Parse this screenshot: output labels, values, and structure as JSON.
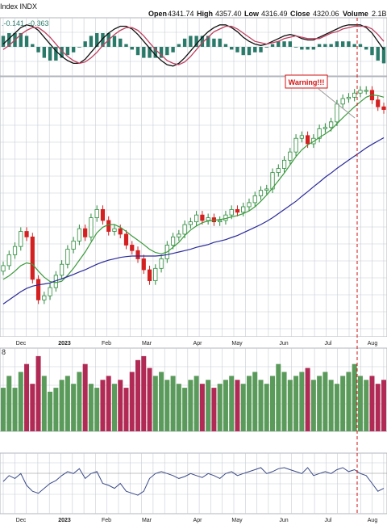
{
  "header": {
    "index_label": "Index INDX",
    "open_label": "Open",
    "open_value": "4341.74",
    "high_label": "High",
    "high_value": "4357.40",
    "low_label": "Low",
    "low_value": "4316.49",
    "close_label": "Close",
    "close_value": "4320.06",
    "volume_label": "Volume",
    "volume_value": "2.1B"
  },
  "macd_readout": ".-0.141, -0.363",
  "volume_axis_tick": "8",
  "annotation": {
    "text": "Warning!!!",
    "color": "#d01010"
  },
  "colors": {
    "up": "#2a8a3a",
    "down": "#d42020",
    "sma_short": "#3a9a3a",
    "sma_long": "#2a2a9a",
    "vol_up": "#5a9a5a",
    "vol_down": "#b02a55",
    "grid": "#c8ccd4",
    "osc": "#3a4a8a",
    "macd_hist": "#2a7a6a"
  },
  "chart_data": [
    {
      "type": "line",
      "panel": "macd",
      "series": [
        {
          "name": "",
          "values": [
            0.2,
            0.6,
            1.0,
            1.4,
            1.6,
            1.5,
            1.2,
            0.7,
            0.2,
            -0.3,
            -0.7,
            -1.0,
            -1.2,
            -1.2,
            -0.9,
            -0.4,
            0.1,
            0.6,
            1.0,
            1.3,
            1.5,
            1.5,
            1.3,
            0.9,
            0.4,
            -0.1,
            -0.6,
            -1.0,
            -1.3,
            -1.4,
            -1.2,
            -0.8,
            -0.3,
            0.2,
            0.7,
            1.1,
            1.4,
            1.6,
            1.6,
            1.4,
            1.1,
            0.7,
            0.4,
            0.2,
            0.1,
            0.2,
            0.4,
            0.6,
            0.8,
            0.9,
            0.8,
            0.6,
            0.5,
            0.5,
            0.7,
            0.9,
            1.1,
            1.3,
            1.5,
            1.6,
            1.6,
            1.6,
            1.4,
            1.0,
            0.4,
            -0.2
          ]
        },
        {
          "name": "",
          "values": [
            -0.2,
            0.1,
            0.5,
            0.9,
            1.2,
            1.4,
            1.4,
            1.1,
            0.7,
            0.2,
            -0.3,
            -0.7,
            -1.0,
            -1.2,
            -1.1,
            -0.8,
            -0.4,
            0.1,
            0.5,
            0.9,
            1.2,
            1.4,
            1.4,
            1.2,
            0.8,
            0.3,
            -0.2,
            -0.6,
            -1.0,
            -1.2,
            -1.3,
            -1.1,
            -0.7,
            -0.2,
            0.3,
            0.7,
            1.1,
            1.3,
            1.5,
            1.5,
            1.3,
            1.0,
            0.7,
            0.4,
            0.3,
            0.2,
            0.3,
            0.4,
            0.6,
            0.7,
            0.8,
            0.7,
            0.6,
            0.6,
            0.6,
            0.8,
            1.0,
            1.1,
            1.3,
            1.4,
            1.5,
            1.5,
            1.5,
            1.3,
            0.9,
            0.4
          ]
        }
      ],
      "ylim": [
        -2,
        2
      ]
    },
    {
      "type": "candlestick",
      "panel": "price",
      "x_labels": [
        "Dec",
        "2023",
        "Feb",
        "Mar",
        "Apr",
        "May",
        "Jun",
        "Jul",
        "Aug"
      ],
      "close": [
        3945,
        3985,
        4015,
        4070,
        4050,
        3895,
        3820,
        3835,
        3865,
        3910,
        3950,
        4005,
        4035,
        4080,
        4050,
        4120,
        4150,
        4110,
        4070,
        4080,
        4060,
        4020,
        4000,
        3970,
        3930,
        3890,
        3935,
        3970,
        4020,
        4050,
        4060,
        4095,
        4105,
        4130,
        4110,
        4120,
        4105,
        4110,
        4130,
        4150,
        4140,
        4160,
        4175,
        4200,
        4220,
        4225,
        4285,
        4300,
        4330,
        4360,
        4410,
        4420,
        4390,
        4410,
        4445,
        4450,
        4470,
        4535,
        4555,
        4560,
        4575,
        4585,
        4585,
        4550,
        4525,
        4515
      ],
      "sma_short_values": [
        3895,
        3908,
        3925,
        3945,
        3955,
        3950,
        3925,
        3903,
        3887,
        3883,
        3888,
        3910,
        3935,
        3965,
        3995,
        4030,
        4065,
        4085,
        4095,
        4095,
        4085,
        4070,
        4053,
        4038,
        4022,
        4005,
        3993,
        3988,
        3995,
        4012,
        4030,
        4055,
        4075,
        4090,
        4102,
        4108,
        4111,
        4113,
        4117,
        4123,
        4128,
        4135,
        4145,
        4160,
        4180,
        4203,
        4228,
        4255,
        4283,
        4313,
        4343,
        4368,
        4386,
        4398,
        4413,
        4426,
        4441,
        4463,
        4485,
        4505,
        4525,
        4543,
        4560,
        4568,
        4566,
        4560
      ],
      "sma_long_values": [
        3805,
        3820,
        3835,
        3850,
        3862,
        3870,
        3875,
        3878,
        3882,
        3890,
        3897,
        3905,
        3913,
        3922,
        3930,
        3940,
        3950,
        3958,
        3965,
        3970,
        3975,
        3978,
        3980,
        3980,
        3980,
        3980,
        3980,
        3982,
        3985,
        3990,
        3995,
        4000,
        4005,
        4012,
        4017,
        4022,
        4030,
        4035,
        4040,
        4048,
        4055,
        4065,
        4075,
        4085,
        4095,
        4107,
        4120,
        4135,
        4150,
        4165,
        4180,
        4198,
        4215,
        4233,
        4250,
        4268,
        4283,
        4300,
        4315,
        4330,
        4345,
        4360,
        4375,
        4388,
        4400,
        4412
      ],
      "ylim": [
        3700,
        4620
      ]
    },
    {
      "type": "bar",
      "panel": "volume",
      "values": [
        0.55,
        0.7,
        0.55,
        0.75,
        0.85,
        0.6,
        0.95,
        0.7,
        0.5,
        0.55,
        0.65,
        0.7,
        0.6,
        0.75,
        0.85,
        0.6,
        0.55,
        0.65,
        0.7,
        0.6,
        0.65,
        0.55,
        0.75,
        0.9,
        0.95,
        0.8,
        0.7,
        0.75,
        0.65,
        0.7,
        0.6,
        0.55,
        0.65,
        0.7,
        0.6,
        0.65,
        0.55,
        0.6,
        0.65,
        0.7,
        0.65,
        0.6,
        0.7,
        0.75,
        0.65,
        0.6,
        0.7,
        0.85,
        0.75,
        0.65,
        0.7,
        0.75,
        0.8,
        0.65,
        0.7,
        0.75,
        0.65,
        0.6,
        0.7,
        0.75,
        0.85,
        0.7,
        0.65,
        0.7,
        0.6,
        0.65
      ],
      "ylim": [
        0,
        1
      ]
    },
    {
      "type": "line",
      "panel": "oscillator",
      "x_labels": [
        "Dec",
        "2023",
        "Feb",
        "Mar",
        "Apr",
        "May",
        "Jun",
        "Jul",
        "Aug"
      ],
      "values": [
        52,
        58,
        55,
        60,
        48,
        42,
        40,
        45,
        50,
        53,
        58,
        62,
        60,
        65,
        55,
        60,
        62,
        50,
        48,
        45,
        50,
        42,
        40,
        38,
        42,
        55,
        60,
        62,
        60,
        58,
        55,
        57,
        60,
        58,
        56,
        60,
        58,
        55,
        60,
        62,
        58,
        60,
        62,
        64,
        66,
        60,
        62,
        65,
        66,
        64,
        62,
        60,
        66,
        58,
        60,
        62,
        60,
        64,
        66,
        62,
        64,
        60,
        58,
        50,
        42,
        45
      ],
      "ylim": [
        20,
        80
      ]
    }
  ]
}
